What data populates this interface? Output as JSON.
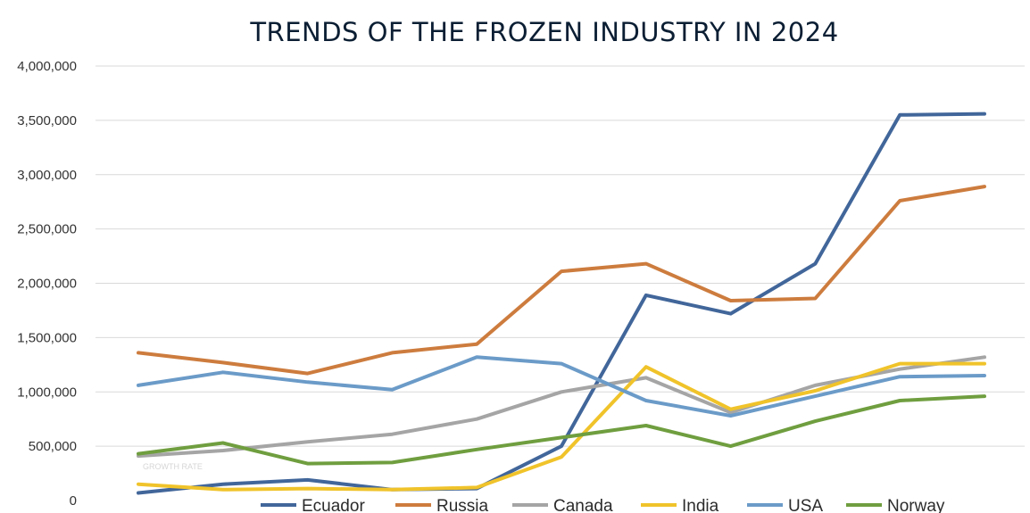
{
  "chart_data": {
    "type": "line",
    "title": "TRENDS OF THE FROZEN INDUSTRY IN 2024",
    "xlabel": "",
    "ylabel": "",
    "ylim": [
      0,
      4000000
    ],
    "y_ticks": [
      0,
      500000,
      1000000,
      1500000,
      2000000,
      2500000,
      3000000,
      3500000,
      4000000
    ],
    "y_tick_labels": [
      "0",
      "500,000",
      "1,000,000",
      "1,500,000",
      "2,000,000",
      "2,500,000",
      "3,000,000",
      "3,500,000",
      "4,000,000"
    ],
    "x": [
      1,
      2,
      3,
      4,
      5,
      6,
      7,
      8,
      9,
      10,
      11
    ],
    "grid": true,
    "legend_position": "bottom",
    "watermark": "GROWTH RATE",
    "series": [
      {
        "name": "Ecuador",
        "color": "#41669a",
        "values": [
          70000,
          150000,
          190000,
          100000,
          110000,
          500000,
          1890000,
          1720000,
          2180000,
          3550000,
          3560000
        ]
      },
      {
        "name": "Russia",
        "color": "#cd7c3e",
        "values": [
          1360000,
          1270000,
          1170000,
          1360000,
          1440000,
          2110000,
          2180000,
          1840000,
          1860000,
          2760000,
          2890000
        ]
      },
      {
        "name": "Canada",
        "color": "#a5a5a5",
        "values": [
          410000,
          460000,
          540000,
          610000,
          750000,
          1000000,
          1130000,
          810000,
          1060000,
          1210000,
          1320000
        ]
      },
      {
        "name": "India",
        "color": "#f0c32a",
        "values": [
          150000,
          100000,
          110000,
          100000,
          120000,
          400000,
          1230000,
          840000,
          1010000,
          1260000,
          1260000
        ]
      },
      {
        "name": "USA",
        "color": "#6b9bc8",
        "values": [
          1060000,
          1180000,
          1090000,
          1020000,
          1320000,
          1260000,
          920000,
          780000,
          960000,
          1140000,
          1150000
        ]
      },
      {
        "name": "Norway",
        "color": "#6f9e3f",
        "values": [
          430000,
          530000,
          340000,
          350000,
          470000,
          580000,
          690000,
          500000,
          730000,
          920000,
          960000
        ]
      }
    ]
  }
}
